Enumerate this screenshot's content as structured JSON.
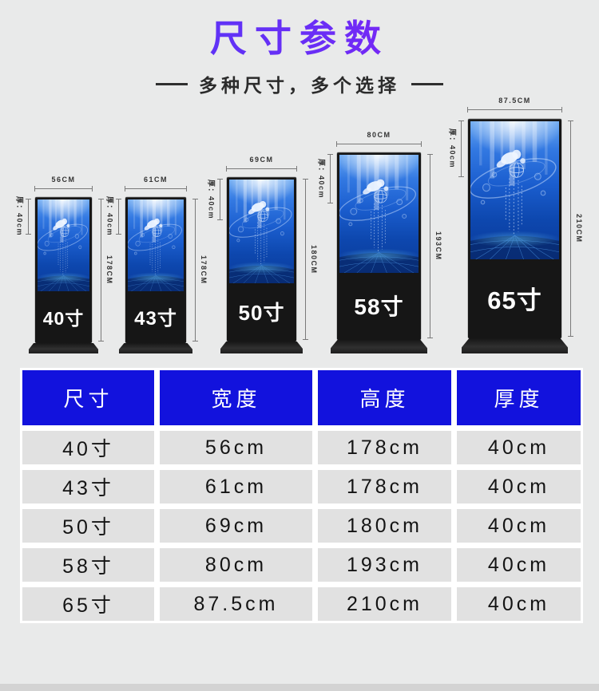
{
  "page": {
    "title": "尺寸参数",
    "subtitle": "多种尺寸，多个选择"
  },
  "kiosks": [
    {
      "size_label": "40寸",
      "width_label": "56CM",
      "height_label": "178CM",
      "thickness_label": "厚：40cm"
    },
    {
      "size_label": "43寸",
      "width_label": "61CM",
      "height_label": "178CM",
      "thickness_label": "厚：40cm"
    },
    {
      "size_label": "50寸",
      "width_label": "69CM",
      "height_label": "180CM",
      "thickness_label": "厚：40cm"
    },
    {
      "size_label": "58寸",
      "width_label": "80CM",
      "height_label": "193CM",
      "thickness_label": "厚：40cm"
    },
    {
      "size_label": "65寸",
      "width_label": "87.5CM",
      "height_label": "210CM",
      "thickness_label": "厚：40cm"
    }
  ],
  "table": {
    "headers": [
      "尺寸",
      "宽度",
      "高度",
      "厚度"
    ],
    "rows": [
      [
        "40寸",
        "56cm",
        "178cm",
        "40cm"
      ],
      [
        "43寸",
        "61cm",
        "178cm",
        "40cm"
      ],
      [
        "50寸",
        "69cm",
        "180cm",
        "40cm"
      ],
      [
        "58寸",
        "80cm",
        "193cm",
        "40cm"
      ],
      [
        "65寸",
        "87.5cm",
        "210cm",
        "40cm"
      ]
    ]
  },
  "colors": {
    "title_gradient_start": "#4a3cf8",
    "title_gradient_end": "#9c15f2",
    "table_header_bg": "#1212dd",
    "table_header_text": "#ffffff",
    "screen_blue": "#1b5ecf",
    "kiosk_body": "#161616"
  }
}
